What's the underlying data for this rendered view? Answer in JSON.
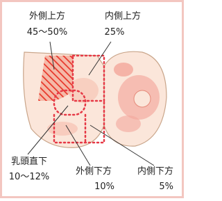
{
  "regions": [
    {
      "name": "外側上方",
      "share": "45～50%"
    },
    {
      "name": "内側上方",
      "share": "25%"
    },
    {
      "name": "乳頭直下",
      "share": "10～12%"
    },
    {
      "name": "外側下方",
      "share": "10%"
    },
    {
      "name": "内側下方",
      "share": "5%"
    }
  ]
}
